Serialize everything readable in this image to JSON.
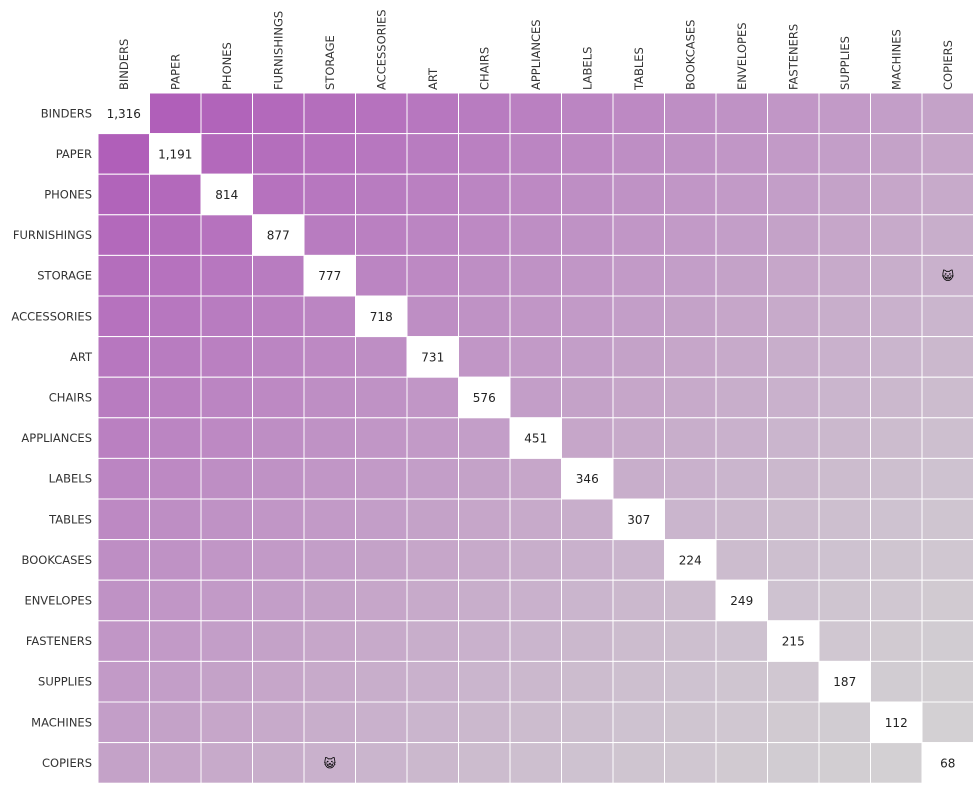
{
  "chart_data": {
    "type": "heatmap",
    "categories": [
      "BINDERS",
      "PAPER",
      "PHONES",
      "FURNISHINGS",
      "STORAGE",
      "ACCESSORIES",
      "ART",
      "CHAIRS",
      "APPLIANCES",
      "LABELS",
      "TABLES",
      "BOOKCASES",
      "ENVELOPES",
      "FASTENERS",
      "SUPPLIES",
      "MACHINES",
      "COPIERS"
    ],
    "diagonal_values": [
      1316,
      1191,
      814,
      877,
      777,
      718,
      731,
      576,
      451,
      346,
      307,
      224,
      249,
      215,
      187,
      112,
      68
    ],
    "diagonal_labels": [
      "1,316",
      "1,191",
      "814",
      "877",
      "777",
      "718",
      "731",
      "576",
      "451",
      "346",
      "307",
      "224",
      "249",
      "215",
      "187",
      "112",
      "68"
    ],
    "highlight_marks": [
      {
        "row": "STORAGE",
        "col": "COPIERS",
        "symbol": "😺"
      },
      {
        "row": "COPIERS",
        "col": "STORAGE",
        "symbol": "😺"
      }
    ],
    "colors": {
      "high": "#ae5ab8",
      "low": "#d3d1d3",
      "diagonal": "#ffffff",
      "grid": "#ffffff"
    }
  }
}
